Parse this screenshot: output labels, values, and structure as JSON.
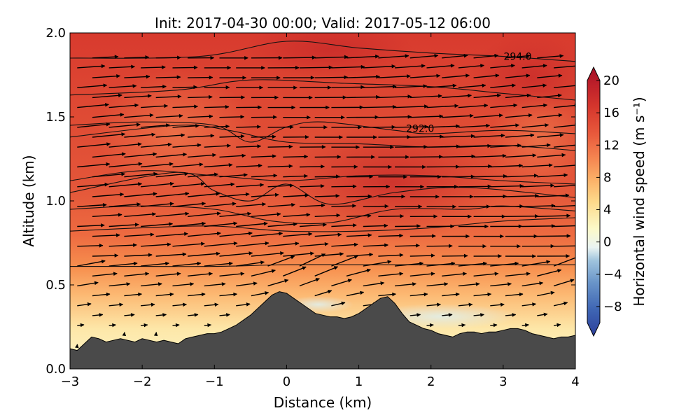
{
  "chart_data": {
    "type": "contourf_quiver",
    "title": "Init: 2017-04-30 00:00; Valid: 2017-05-12 06:00",
    "xlabel": "Distance (km)",
    "ylabel": "Altitude (km)",
    "xlim": [
      -3,
      4
    ],
    "ylim": [
      0,
      2.0
    ],
    "x_ticks": [
      -3,
      -2,
      -1,
      0,
      1,
      2,
      3,
      4
    ],
    "x_tick_labels": [
      "−3",
      "−2",
      "−1",
      "0",
      "1",
      "2",
      "3",
      "4"
    ],
    "y_ticks": [
      0.0,
      0.5,
      1.0,
      1.5,
      2.0
    ],
    "y_tick_labels": [
      "0.0",
      "0.5",
      "1.0",
      "1.5",
      "2.0"
    ],
    "colorbar": {
      "label": "Horizontal wind speed (m s⁻¹)",
      "range": [
        -10,
        20
      ],
      "ticks": [
        20,
        16,
        12,
        8,
        4,
        0,
        -4,
        -8
      ],
      "tick_labels": [
        "20",
        "16",
        "12",
        "8",
        "4",
        "0",
        "−4",
        "−8"
      ],
      "colors": [
        "#2c3f9b",
        "#3f66b4",
        "#6a95c9",
        "#9fc3dd",
        "#d4e8ee",
        "#fcf9c8",
        "#fde49b",
        "#fdc476",
        "#f9a05b",
        "#f2764a",
        "#e4503a",
        "#d2322c",
        "#b71b2b",
        "#a50f26"
      ]
    },
    "terrain": {
      "color": "#4a4a4a",
      "x": [
        -3.0,
        -2.9,
        -2.8,
        -2.7,
        -2.6,
        -2.5,
        -2.4,
        -2.3,
        -2.2,
        -2.1,
        -2.0,
        -1.9,
        -1.8,
        -1.7,
        -1.6,
        -1.5,
        -1.4,
        -1.3,
        -1.2,
        -1.1,
        -1.0,
        -0.9,
        -0.8,
        -0.7,
        -0.6,
        -0.5,
        -0.4,
        -0.3,
        -0.2,
        -0.1,
        0.0,
        0.1,
        0.2,
        0.3,
        0.4,
        0.5,
        0.6,
        0.7,
        0.8,
        0.9,
        1.0,
        1.1,
        1.2,
        1.3,
        1.4,
        1.5,
        1.6,
        1.7,
        1.8,
        1.9,
        2.0,
        2.1,
        2.2,
        2.3,
        2.4,
        2.5,
        2.6,
        2.7,
        2.8,
        2.9,
        3.0,
        3.1,
        3.2,
        3.3,
        3.4,
        3.5,
        3.6,
        3.7,
        3.8,
        3.9,
        4.0
      ],
      "z": [
        0.12,
        0.11,
        0.15,
        0.19,
        0.18,
        0.16,
        0.17,
        0.18,
        0.17,
        0.16,
        0.18,
        0.17,
        0.16,
        0.17,
        0.16,
        0.15,
        0.18,
        0.19,
        0.2,
        0.21,
        0.21,
        0.22,
        0.24,
        0.26,
        0.29,
        0.32,
        0.36,
        0.4,
        0.44,
        0.46,
        0.45,
        0.42,
        0.39,
        0.36,
        0.33,
        0.32,
        0.31,
        0.31,
        0.3,
        0.31,
        0.33,
        0.36,
        0.39,
        0.42,
        0.43,
        0.39,
        0.33,
        0.28,
        0.26,
        0.24,
        0.23,
        0.21,
        0.2,
        0.19,
        0.21,
        0.22,
        0.22,
        0.21,
        0.22,
        0.22,
        0.23,
        0.24,
        0.24,
        0.23,
        0.21,
        0.2,
        0.19,
        0.18,
        0.19,
        0.19,
        0.2
      ]
    },
    "contour_labels": [
      {
        "x": 3.2,
        "y": 1.84,
        "text": "294.0"
      },
      {
        "x": 1.85,
        "y": 1.41,
        "text": "292.0"
      }
    ],
    "contour_lines": [
      {
        "x": [
          -3,
          -1.2,
          0,
          1,
          2,
          3,
          4
        ],
        "y": [
          1.85,
          1.86,
          1.95,
          1.91,
          1.88,
          1.86,
          1.83
        ]
      },
      {
        "x": [
          -3,
          -1.5,
          -0.5,
          0.8,
          2,
          3,
          4
        ],
        "y": [
          1.63,
          1.66,
          1.72,
          1.7,
          1.68,
          1.64,
          1.6
        ]
      },
      {
        "x": [
          -3,
          -2,
          -1,
          -0.5,
          0,
          0.5,
          1.5,
          2,
          3,
          4
        ],
        "y": [
          1.45,
          1.47,
          1.45,
          1.35,
          1.44,
          1.47,
          1.42,
          1.4,
          1.42,
          1.4
        ]
      },
      {
        "x": [
          -3,
          -1.5,
          -0.8,
          0,
          1,
          2,
          3,
          4
        ],
        "y": [
          1.38,
          1.45,
          1.42,
          1.35,
          1.34,
          1.32,
          1.33,
          1.3
        ]
      },
      {
        "x": [
          -3,
          -2,
          -1,
          0,
          1,
          2,
          3,
          4
        ],
        "y": [
          1.12,
          1.18,
          1.15,
          1.12,
          1.15,
          1.15,
          1.12,
          1.1
        ]
      },
      {
        "x": [
          -3,
          -1.5,
          -1,
          -0.5,
          0,
          0.6,
          1.5,
          2.5,
          4
        ],
        "y": [
          1.05,
          1.17,
          1.06,
          1.0,
          1.1,
          0.98,
          1.05,
          1.08,
          1.02
        ]
      },
      {
        "x": [
          -3,
          -2,
          -1,
          -0.2,
          0.6,
          1.5,
          2.5,
          3,
          4
        ],
        "y": [
          0.95,
          0.97,
          0.95,
          0.88,
          0.87,
          0.95,
          0.95,
          0.97,
          0.94
        ]
      },
      {
        "x": [
          -3,
          -2,
          -1,
          0,
          1,
          2,
          3,
          4
        ],
        "y": [
          0.82,
          0.84,
          0.85,
          0.82,
          0.82,
          0.84,
          0.88,
          0.9
        ]
      },
      {
        "x": [
          -3,
          -2,
          -1,
          0,
          1,
          2,
          3,
          4
        ],
        "y": [
          0.61,
          0.61,
          0.61,
          0.62,
          0.62,
          0.62,
          0.62,
          0.62
        ]
      }
    ]
  }
}
